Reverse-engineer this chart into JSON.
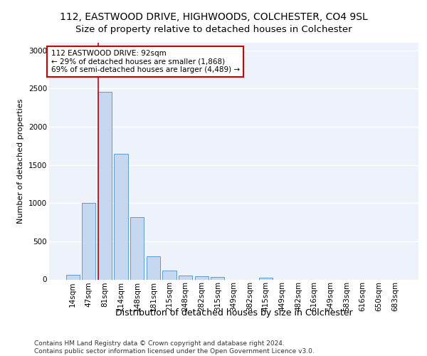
{
  "title1": "112, EASTWOOD DRIVE, HIGHWOODS, COLCHESTER, CO4 9SL",
  "title2": "Size of property relative to detached houses in Colchester",
  "xlabel": "Distribution of detached houses by size in Colchester",
  "ylabel": "Number of detached properties",
  "categories": [
    "14sqm",
    "47sqm",
    "81sqm",
    "114sqm",
    "148sqm",
    "181sqm",
    "215sqm",
    "248sqm",
    "282sqm",
    "315sqm",
    "349sqm",
    "382sqm",
    "415sqm",
    "449sqm",
    "482sqm",
    "516sqm",
    "549sqm",
    "583sqm",
    "616sqm",
    "650sqm",
    "683sqm"
  ],
  "values": [
    60,
    1000,
    2460,
    1650,
    820,
    300,
    120,
    50,
    45,
    30,
    0,
    0,
    25,
    0,
    0,
    0,
    0,
    0,
    0,
    0,
    0
  ],
  "bar_color": "#c5d8f0",
  "bar_edge_color": "#5b9bd5",
  "property_bar_index": 2,
  "red_line_color": "#cc0000",
  "annotation_text": "112 EASTWOOD DRIVE: 92sqm\n← 29% of detached houses are smaller (1,868)\n69% of semi-detached houses are larger (4,489) →",
  "annotation_box_color": "#ffffff",
  "annotation_box_edge": "#cc0000",
  "ylim": [
    0,
    3100
  ],
  "yticks": [
    0,
    500,
    1000,
    1500,
    2000,
    2500,
    3000
  ],
  "background_color": "#eef2fb",
  "grid_color": "#ffffff",
  "footer_text": "Contains HM Land Registry data © Crown copyright and database right 2024.\nContains public sector information licensed under the Open Government Licence v3.0.",
  "title1_fontsize": 10,
  "title2_fontsize": 9.5,
  "xlabel_fontsize": 9,
  "ylabel_fontsize": 8,
  "tick_fontsize": 7.5,
  "annotation_fontsize": 7.5,
  "footer_fontsize": 6.5
}
